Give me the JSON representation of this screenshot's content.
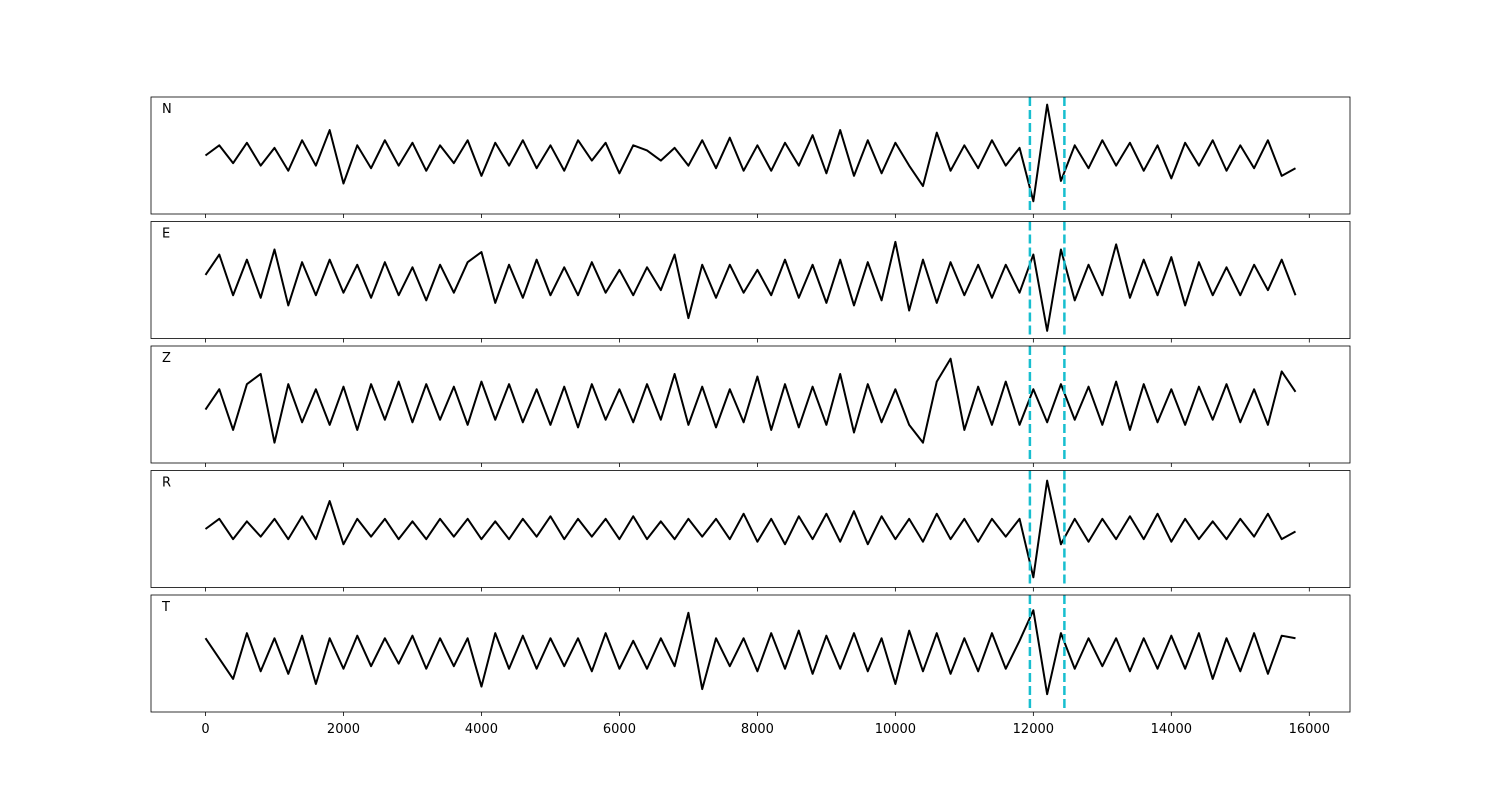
{
  "chart_data": [
    {
      "type": "line",
      "label": "N",
      "color": "#000000",
      "x": [
        0,
        200,
        400,
        600,
        800,
        1000,
        1200,
        1400,
        1600,
        1800,
        2000,
        2200,
        2400,
        2600,
        2800,
        3000,
        3200,
        3400,
        3600,
        3800,
        4000,
        4200,
        4400,
        4600,
        4800,
        5000,
        5200,
        5400,
        5600,
        5800,
        6000,
        6200,
        6400,
        6600,
        6800,
        7000,
        7200,
        7400,
        7600,
        7800,
        8000,
        8200,
        8400,
        8600,
        8800,
        9000,
        9200,
        9400,
        9600,
        9800,
        10000,
        10200,
        10400,
        10600,
        10800,
        11000,
        11200,
        11400,
        11600,
        11800,
        12000,
        12200,
        12400,
        12600,
        12800,
        13000,
        13200,
        13400,
        13600,
        13800,
        14000,
        14200,
        14400,
        14600,
        14800,
        15000,
        15200,
        15400,
        15600,
        15800
      ],
      "values": [
        0,
        0.2,
        -0.15,
        0.25,
        -0.2,
        0.15,
        -0.3,
        0.3,
        -0.2,
        0.5,
        -0.55,
        0.2,
        -0.25,
        0.3,
        -0.2,
        0.25,
        -0.3,
        0.2,
        -0.15,
        0.3,
        -0.4,
        0.25,
        -0.2,
        0.3,
        -0.25,
        0.2,
        -0.3,
        0.3,
        -0.1,
        0.25,
        -0.35,
        0.2,
        0.1,
        -0.1,
        0.15,
        -0.2,
        0.3,
        -0.25,
        0.35,
        -0.3,
        0.2,
        -0.3,
        0.25,
        -0.2,
        0.4,
        -0.35,
        0.5,
        -0.4,
        0.3,
        -0.35,
        0.25,
        -0.2,
        -0.6,
        0.45,
        -0.3,
        0.2,
        -0.25,
        0.3,
        -0.2,
        0.15,
        -0.9,
        1.0,
        -0.5,
        0.2,
        -0.25,
        0.3,
        -0.2,
        0.25,
        -0.3,
        0.2,
        -0.45,
        0.25,
        -0.2,
        0.3,
        -0.3,
        0.2,
        -0.25,
        0.3,
        -0.4,
        -0.25
      ],
      "xlim": [
        -790,
        16590
      ],
      "ylim": [
        -1.15,
        1.15
      ],
      "xticks": [
        0,
        2000,
        4000,
        6000,
        8000,
        10000,
        12000,
        14000,
        16000
      ],
      "vlines": [
        11950,
        12450
      ],
      "vline_color": "#17becf"
    },
    {
      "type": "line",
      "label": "E",
      "color": "#000000",
      "x": [
        0,
        200,
        400,
        600,
        800,
        1000,
        1200,
        1400,
        1600,
        1800,
        2000,
        2200,
        2400,
        2600,
        2800,
        3000,
        3200,
        3400,
        3600,
        3800,
        4000,
        4200,
        4400,
        4600,
        4800,
        5000,
        5200,
        5400,
        5600,
        5800,
        6000,
        6200,
        6400,
        6600,
        6800,
        7000,
        7200,
        7400,
        7600,
        7800,
        8000,
        8200,
        8400,
        8600,
        8800,
        9000,
        9200,
        9400,
        9600,
        9800,
        10000,
        10200,
        10400,
        10600,
        10800,
        11000,
        11200,
        11400,
        11600,
        11800,
        12000,
        12200,
        12400,
        12600,
        12800,
        13000,
        13200,
        13400,
        13600,
        13800,
        14000,
        14200,
        14400,
        14600,
        14800,
        15000,
        15200,
        15400,
        15600,
        15800
      ],
      "values": [
        0.1,
        0.5,
        -0.3,
        0.4,
        -0.35,
        0.6,
        -0.5,
        0.35,
        -0.3,
        0.4,
        -0.25,
        0.3,
        -0.35,
        0.35,
        -0.3,
        0.25,
        -0.4,
        0.3,
        -0.25,
        0.35,
        0.55,
        -0.45,
        0.3,
        -0.35,
        0.4,
        -0.3,
        0.25,
        -0.3,
        0.35,
        -0.25,
        0.2,
        -0.3,
        0.25,
        -0.2,
        0.5,
        -0.75,
        0.3,
        -0.35,
        0.3,
        -0.25,
        0.2,
        -0.3,
        0.4,
        -0.35,
        0.3,
        -0.45,
        0.4,
        -0.5,
        0.35,
        -0.4,
        0.75,
        -0.6,
        0.4,
        -0.45,
        0.35,
        -0.3,
        0.3,
        -0.35,
        0.3,
        -0.25,
        0.5,
        -1.0,
        0.6,
        -0.4,
        0.3,
        -0.3,
        0.7,
        -0.35,
        0.4,
        -0.3,
        0.45,
        -0.5,
        0.35,
        -0.3,
        0.25,
        -0.3,
        0.3,
        -0.2,
        0.4,
        -0.3
      ],
      "xlim": [
        -790,
        16590
      ],
      "ylim": [
        -1.15,
        1.15
      ],
      "xticks": [
        0,
        2000,
        4000,
        6000,
        8000,
        10000,
        12000,
        14000,
        16000
      ],
      "vlines": [
        11950,
        12450
      ],
      "vline_color": "#17becf"
    },
    {
      "type": "line",
      "label": "Z",
      "color": "#000000",
      "x": [
        0,
        200,
        400,
        600,
        800,
        1000,
        1200,
        1400,
        1600,
        1800,
        2000,
        2200,
        2400,
        2600,
        2800,
        3000,
        3200,
        3400,
        3600,
        3800,
        4000,
        4200,
        4400,
        4600,
        4800,
        5000,
        5200,
        5400,
        5600,
        5800,
        6000,
        6200,
        6400,
        6600,
        6800,
        7000,
        7200,
        7400,
        7600,
        7800,
        8000,
        8200,
        8400,
        8600,
        8800,
        9000,
        9200,
        9400,
        9600,
        9800,
        10000,
        10200,
        10400,
        10600,
        10800,
        11000,
        11200,
        11400,
        11600,
        11800,
        12000,
        12200,
        12400,
        12600,
        12800,
        13000,
        13200,
        13400,
        13600,
        13800,
        14000,
        14200,
        14400,
        14600,
        14800,
        15000,
        15200,
        15400,
        15600,
        15800
      ],
      "values": [
        -0.1,
        0.3,
        -0.5,
        0.4,
        0.6,
        -0.75,
        0.4,
        -0.35,
        0.3,
        -0.4,
        0.35,
        -0.5,
        0.4,
        -0.3,
        0.45,
        -0.35,
        0.4,
        -0.3,
        0.35,
        -0.4,
        0.45,
        -0.3,
        0.4,
        -0.35,
        0.3,
        -0.4,
        0.35,
        -0.45,
        0.4,
        -0.3,
        0.3,
        -0.35,
        0.4,
        -0.3,
        0.6,
        -0.4,
        0.35,
        -0.45,
        0.3,
        -0.35,
        0.55,
        -0.5,
        0.4,
        -0.45,
        0.35,
        -0.4,
        0.6,
        -0.55,
        0.4,
        -0.35,
        0.3,
        -0.4,
        -0.75,
        0.45,
        0.9,
        -0.5,
        0.35,
        -0.4,
        0.45,
        -0.4,
        0.3,
        -0.35,
        0.4,
        -0.3,
        0.35,
        -0.4,
        0.45,
        -0.5,
        0.4,
        -0.35,
        0.3,
        -0.4,
        0.35,
        -0.3,
        0.4,
        -0.35,
        0.3,
        -0.4,
        0.65,
        0.25
      ],
      "xlim": [
        -790,
        16590
      ],
      "ylim": [
        -1.15,
        1.15
      ],
      "xticks": [
        0,
        2000,
        4000,
        6000,
        8000,
        10000,
        12000,
        14000,
        16000
      ],
      "vlines": [
        11950,
        12450
      ],
      "vline_color": "#17becf"
    },
    {
      "type": "line",
      "label": "R",
      "color": "#000000",
      "x": [
        0,
        200,
        400,
        600,
        800,
        1000,
        1200,
        1400,
        1600,
        1800,
        2000,
        2200,
        2400,
        2600,
        2800,
        3000,
        3200,
        3400,
        3600,
        3800,
        4000,
        4200,
        4400,
        4600,
        4800,
        5000,
        5200,
        5400,
        5600,
        5800,
        6000,
        6200,
        6400,
        6600,
        6800,
        7000,
        7200,
        7400,
        7600,
        7800,
        8000,
        8200,
        8400,
        8600,
        8800,
        9000,
        9200,
        9400,
        9600,
        9800,
        10000,
        10200,
        10400,
        10600,
        10800,
        11000,
        11200,
        11400,
        11600,
        11800,
        12000,
        12200,
        12400,
        12600,
        12800,
        13000,
        13200,
        13400,
        13600,
        13800,
        14000,
        14200,
        14400,
        14600,
        14800,
        15000,
        15200,
        15400,
        15600,
        15800
      ],
      "values": [
        0,
        0.2,
        -0.2,
        0.15,
        -0.15,
        0.2,
        -0.2,
        0.25,
        -0.2,
        0.55,
        -0.3,
        0.2,
        -0.15,
        0.2,
        -0.2,
        0.15,
        -0.2,
        0.2,
        -0.15,
        0.2,
        -0.2,
        0.15,
        -0.2,
        0.2,
        -0.15,
        0.25,
        -0.2,
        0.2,
        -0.15,
        0.2,
        -0.2,
        0.25,
        -0.2,
        0.15,
        -0.2,
        0.2,
        -0.15,
        0.2,
        -0.2,
        0.3,
        -0.25,
        0.2,
        -0.3,
        0.25,
        -0.2,
        0.3,
        -0.25,
        0.35,
        -0.3,
        0.25,
        -0.2,
        0.2,
        -0.25,
        0.3,
        -0.2,
        0.2,
        -0.25,
        0.2,
        -0.15,
        0.2,
        -0.95,
        0.95,
        -0.3,
        0.2,
        -0.25,
        0.2,
        -0.2,
        0.25,
        -0.2,
        0.3,
        -0.25,
        0.2,
        -0.2,
        0.15,
        -0.2,
        0.2,
        -0.15,
        0.3,
        -0.2,
        -0.05
      ],
      "xlim": [
        -790,
        16590
      ],
      "ylim": [
        -1.15,
        1.15
      ],
      "xticks": [
        0,
        2000,
        4000,
        6000,
        8000,
        10000,
        12000,
        14000,
        16000
      ],
      "vlines": [
        11950,
        12450
      ],
      "vline_color": "#17becf"
    },
    {
      "type": "line",
      "label": "T",
      "color": "#000000",
      "x": [
        0,
        200,
        400,
        600,
        800,
        1000,
        1200,
        1400,
        1600,
        1800,
        2000,
        2200,
        2400,
        2600,
        2800,
        3000,
        3200,
        3400,
        3600,
        3800,
        4000,
        4200,
        4400,
        4600,
        4800,
        5000,
        5200,
        5400,
        5600,
        5800,
        6000,
        6200,
        6400,
        6600,
        6800,
        7000,
        7200,
        7400,
        7600,
        7800,
        8000,
        8200,
        8400,
        8600,
        8800,
        9000,
        9200,
        9400,
        9600,
        9800,
        10000,
        10200,
        10400,
        10600,
        10800,
        11000,
        11200,
        11400,
        11600,
        11800,
        12000,
        12200,
        12400,
        12600,
        12800,
        13000,
        13200,
        13400,
        13600,
        13800,
        14000,
        14200,
        14400,
        14600,
        14800,
        15000,
        15200,
        15400,
        15600,
        15800
      ],
      "values": [
        0.3,
        -0.1,
        -0.5,
        0.4,
        -0.35,
        0.3,
        -0.4,
        0.35,
        -0.6,
        0.3,
        -0.3,
        0.35,
        -0.25,
        0.3,
        -0.2,
        0.35,
        -0.3,
        0.3,
        -0.25,
        0.3,
        -0.65,
        0.4,
        -0.3,
        0.35,
        -0.3,
        0.3,
        -0.25,
        0.3,
        -0.35,
        0.4,
        -0.3,
        0.25,
        -0.3,
        0.3,
        -0.25,
        0.8,
        -0.7,
        0.3,
        -0.25,
        0.3,
        -0.35,
        0.4,
        -0.3,
        0.45,
        -0.4,
        0.35,
        -0.3,
        0.4,
        -0.35,
        0.3,
        -0.6,
        0.45,
        -0.35,
        0.4,
        -0.4,
        0.3,
        -0.35,
        0.4,
        -0.3,
        0.25,
        0.85,
        -0.8,
        0.4,
        -0.3,
        0.3,
        -0.25,
        0.3,
        -0.35,
        0.3,
        -0.3,
        0.35,
        -0.3,
        0.4,
        -0.5,
        0.3,
        -0.35,
        0.4,
        -0.4,
        0.35,
        0.3
      ],
      "xlim": [
        -790,
        16590
      ],
      "ylim": [
        -1.15,
        1.15
      ],
      "xticks": [
        0,
        2000,
        4000,
        6000,
        8000,
        10000,
        12000,
        14000,
        16000
      ],
      "vlines": [
        11950,
        12450
      ],
      "vline_color": "#17becf"
    }
  ]
}
